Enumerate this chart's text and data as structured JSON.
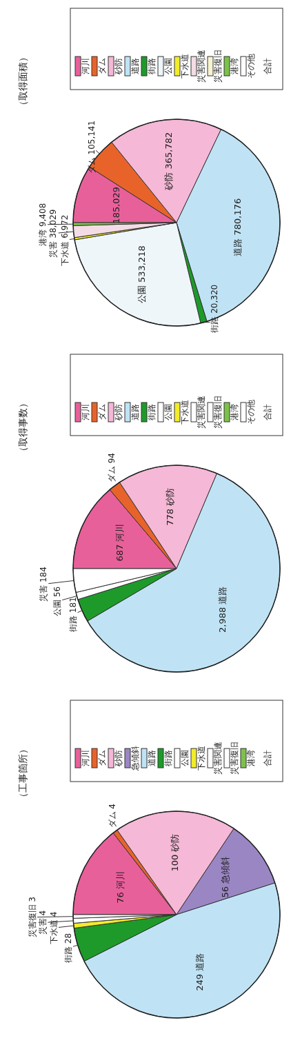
{
  "chart_data": [
    {
      "type": "pie",
      "title": "（工事箇所）",
      "legend": "top",
      "annotations": [
        "合計"
      ],
      "categories": [
        "河川",
        "ダム",
        "砂防",
        "急傾斜",
        "道路",
        "街路",
        "公園",
        "下水道",
        "災害関連",
        "災害復旧",
        "港湾"
      ],
      "values": [
        76,
        4,
        100,
        56,
        249,
        28,
        null,
        4,
        4,
        3,
        null
      ],
      "colors": [
        "#e8609a",
        "#e8632a",
        "#f5b8d6",
        "#9b86c4",
        "#bfe3f5",
        "#1e9a2a",
        "#ffffff",
        "#f2ec2a",
        "#ffffff",
        "#ffffff",
        "#7cc24a"
      ],
      "value_labels": [
        "76 河川",
        "ダム 4",
        "100 砂防",
        "56 急傾斜",
        "249 道路",
        "街路 28",
        null,
        "下水道 4",
        "災害 4",
        "災害復旧 3",
        null
      ]
    },
    {
      "type": "pie",
      "title": "（取得事数）",
      "legend": "top",
      "annotations": [
        "合計"
      ],
      "categories": [
        "河川",
        "ダム",
        "砂防",
        "道路",
        "街路",
        "公園",
        "下水道",
        "災害関連",
        "災害復旧",
        "港湾",
        "その他"
      ],
      "values": [
        687,
        94,
        778,
        2988,
        181,
        56,
        null,
        184,
        null,
        null,
        null
      ],
      "colors": [
        "#e8609a",
        "#e8632a",
        "#f5b8d6",
        "#bfe3f5",
        "#1e9a2a",
        "#ffffff",
        "#f2ec2a",
        "#ffffff",
        "#ffffff",
        "#7cc24a",
        "#ffffff"
      ],
      "value_labels": [
        "687 河川",
        "ダム 94",
        "778 砂防",
        "2,988 道路",
        "街路 181",
        "公園 56",
        null,
        "災害 184",
        null,
        null,
        null
      ]
    },
    {
      "type": "pie",
      "title": "（取得面積）",
      "legend": "top",
      "annotations": [
        "合計"
      ],
      "categories": [
        "河川",
        "ダム",
        "砂防",
        "道路",
        "街路",
        "公園",
        "下水道",
        "災害関連",
        "災害復旧",
        "港湾",
        "その他"
      ],
      "values": [
        185029,
        105141,
        365782,
        780176,
        20320,
        533218,
        6972,
        38029,
        null,
        9408,
        null
      ],
      "colors": [
        "#e8609a",
        "#e8632a",
        "#f5b8d6",
        "#bfe3f5",
        "#1e9a2a",
        "#eef6fa",
        "#f2ec2a",
        "#f4dce6",
        "#f6f3d2",
        "#7cc24a",
        "#ffffff"
      ],
      "value_labels": [
        "185,029",
        "ダム 105,141",
        "砂防 365,782",
        "道路 780,176",
        "街路 20,320",
        "公園 533,218",
        "下水道 6,972",
        "災害 38,029",
        null,
        "港湾 9,408",
        null
      ]
    }
  ]
}
